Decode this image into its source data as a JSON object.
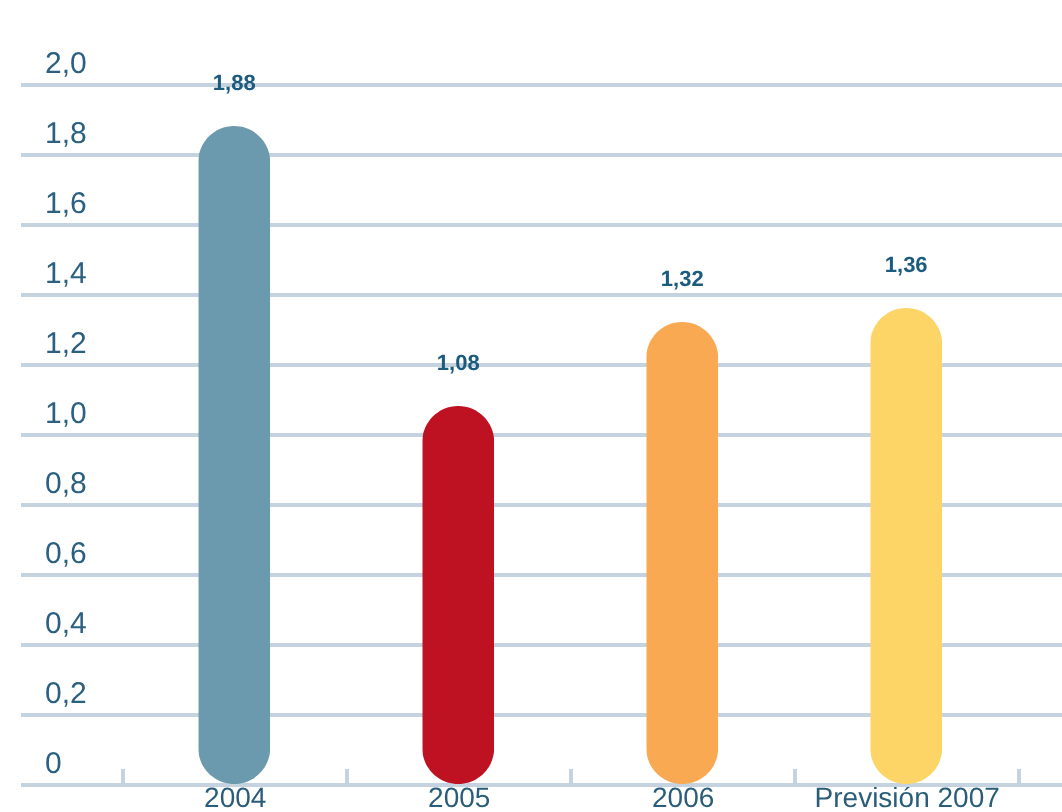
{
  "chart_data": {
    "type": "bar",
    "categories": [
      "2004",
      "2005",
      "2006",
      "Previsión 2007"
    ],
    "values": [
      1.88,
      1.08,
      1.32,
      1.36
    ],
    "colors": [
      "#6b9aae",
      "#be1222",
      "#f9a952",
      "#fdd466"
    ],
    "value_labels": [
      "1,88",
      "1,08",
      "1,32",
      "1,36"
    ],
    "ylim": [
      0,
      2
    ],
    "yticks": [
      0,
      {
        "value": 0.2,
        "label": "0,2"
      },
      {
        "value": 0.4,
        "label": "0,4"
      },
      {
        "value": 0.6,
        "label": "0,6"
      },
      {
        "value": 0.8,
        "label": "0,8"
      },
      {
        "value": 1,
        "label": "1,0"
      },
      {
        "value": 1.2,
        "label": "1,2"
      },
      {
        "value": 1.4,
        "label": "1,4"
      },
      {
        "value": 1.6,
        "label": "1,6"
      },
      {
        "value": 1.8,
        "label": "1,8"
      },
      {
        "value": 2,
        "label": "2,0"
      }
    ],
    "grid": "y"
  }
}
